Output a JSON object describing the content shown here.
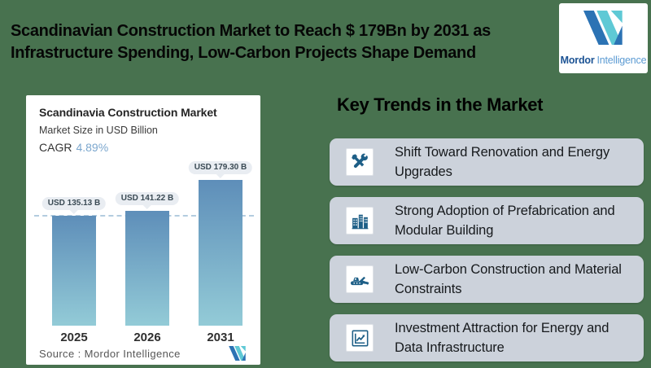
{
  "header": {
    "title_line1": "Scandinavian Construction Market to Reach $ 179Bn by 2031 as",
    "title_line2": "Infrastructure Spending, Low-Carbon Projects Shape Demand",
    "brand": {
      "bold": "Mordor",
      "light": "Intelligence"
    }
  },
  "chart_card": {
    "title": "Scandinavia Construction Market",
    "subtitle": "Market Size in USD Billion",
    "cagr_label": "CAGR",
    "cagr_value": "4.89%",
    "source": "Source :  Mordor Intelligence"
  },
  "chart_data": {
    "type": "bar",
    "title": "Scandinavia Construction Market",
    "subtitle": "Market Size in USD Billion",
    "cagr": "4.89%",
    "categories": [
      "2025",
      "2026",
      "2031"
    ],
    "values": [
      135.13,
      141.22,
      179.3
    ],
    "value_labels": [
      "USD 135.13 B",
      "USD 141.22 B",
      "USD 179.30 B"
    ],
    "unit": "USD Billion",
    "reference_line": 136,
    "ylim": [
      0,
      200
    ],
    "grid": false,
    "legend": "none",
    "bar_gradient": [
      "#5E8EB9",
      "#93CBD7"
    ],
    "source": "Mordor Intelligence"
  },
  "trends": {
    "heading": "Key Trends in the Market",
    "items": [
      {
        "icon": "tools-icon",
        "text": "Shift Toward Renovation and Energy Upgrades"
      },
      {
        "icon": "buildings-icon",
        "text": "Strong Adoption of Prefabrication and Modular Building"
      },
      {
        "icon": "excavator-icon",
        "text": "Low-Carbon Construction and Material Constraints"
      },
      {
        "icon": "growth-chart-icon",
        "text": "Investment Attraction for Energy and Data Infrastructure"
      }
    ]
  },
  "colors": {
    "background": "#48724F",
    "card_gray": "#CCD2DB",
    "icon_blue": "#1E5F87",
    "cagr_blue": "#7CA7CE",
    "brand_blue": "#2C73B4",
    "brand_teal": "#5FC9D5",
    "dashed_line": "#B3CCDF"
  }
}
